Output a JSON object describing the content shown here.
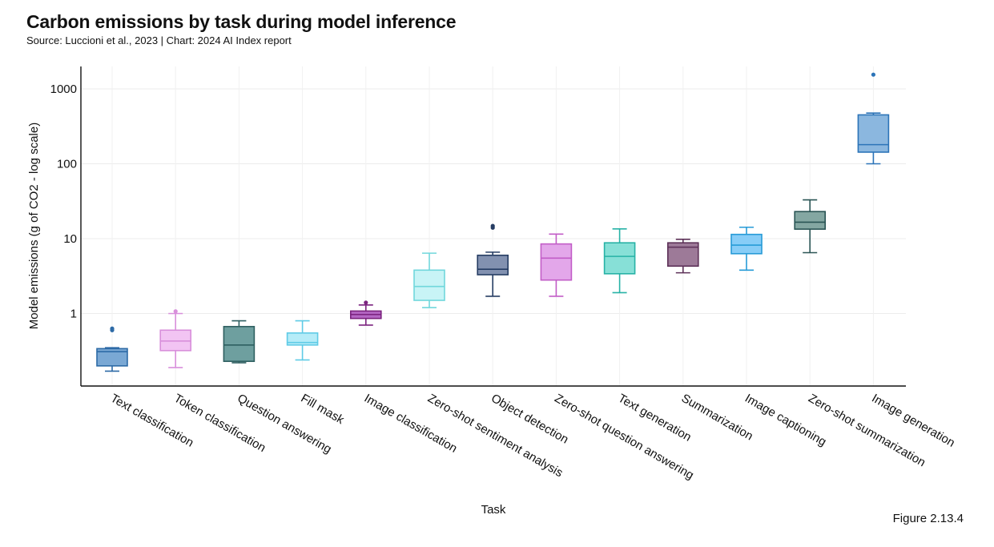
{
  "header": {
    "title": "Carbon emissions by task during model inference",
    "subtitle": "Source: Luccioni et al., 2023 | Chart: 2024 AI Index report"
  },
  "footer": {
    "figure_label": "Figure 2.13.4"
  },
  "chart_data": {
    "type": "box",
    "title": "Carbon emissions by task during model inference",
    "xlabel": "Task",
    "ylabel": "Model emissions (g of CO2 - log scale)",
    "y_scale": "log",
    "ylim": [
      0.12,
      2200
    ],
    "y_ticks": [
      1,
      10,
      100,
      1000
    ],
    "y_tick_labels": [
      "1",
      "10",
      "100",
      "1000"
    ],
    "grid": true,
    "categories": [
      "Text classification",
      "Token classification",
      "Question answering",
      "Fill mask",
      "Image classification",
      "Zero-shot sentiment analysis",
      "Object detection",
      "Zero-shot question answering",
      "Text generation",
      "Summarization",
      "Image captioning",
      "Zero-shot summarization",
      "Image generation"
    ],
    "boxes": [
      {
        "min": 0.17,
        "q1": 0.2,
        "median": 0.31,
        "q3": 0.34,
        "max": 0.35,
        "outliers": [
          0.6,
          0.63
        ],
        "fill": "#7aa8d4",
        "stroke": "#2d6aa6"
      },
      {
        "min": 0.19,
        "q1": 0.32,
        "median": 0.43,
        "q3": 0.6,
        "max": 1.0,
        "outliers": [
          1.07
        ],
        "fill": "#f2c4f3",
        "stroke": "#d88fdb"
      },
      {
        "min": 0.22,
        "q1": 0.23,
        "median": 0.38,
        "q3": 0.67,
        "max": 0.8,
        "outliers": [],
        "fill": "#6e9f9f",
        "stroke": "#2e5f60"
      },
      {
        "min": 0.24,
        "q1": 0.38,
        "median": 0.41,
        "q3": 0.55,
        "max": 0.8,
        "outliers": [],
        "fill": "#b5ecf8",
        "stroke": "#5fcbe6"
      },
      {
        "min": 0.7,
        "q1": 0.86,
        "median": 0.97,
        "q3": 1.08,
        "max": 1.3,
        "outliers": [
          1.4
        ],
        "fill": "#b567c4",
        "stroke": "#7b237f"
      },
      {
        "min": 1.2,
        "q1": 1.5,
        "median": 2.3,
        "q3": 3.8,
        "max": 6.4,
        "outliers": [],
        "fill": "#c8f4f6",
        "stroke": "#71d7dc"
      },
      {
        "min": 1.7,
        "q1": 3.3,
        "median": 3.9,
        "q3": 6.0,
        "max": 6.6,
        "outliers": [
          14.0,
          14.8
        ],
        "fill": "#8291b0",
        "stroke": "#263d63"
      },
      {
        "min": 1.7,
        "q1": 2.8,
        "median": 5.5,
        "q3": 8.5,
        "max": 11.5,
        "outliers": [],
        "fill": "#e3a7ea",
        "stroke": "#c25dc7"
      },
      {
        "min": 1.9,
        "q1": 3.4,
        "median": 5.8,
        "q3": 8.8,
        "max": 13.5,
        "outliers": [],
        "fill": "#87e0d7",
        "stroke": "#27b2a6"
      },
      {
        "min": 3.5,
        "q1": 4.3,
        "median": 7.7,
        "q3": 8.8,
        "max": 9.8,
        "outliers": [],
        "fill": "#9d7a98",
        "stroke": "#5d3158"
      },
      {
        "min": 3.8,
        "q1": 6.3,
        "median": 8.2,
        "q3": 11.4,
        "max": 14.2,
        "outliers": [],
        "fill": "#87cdf7",
        "stroke": "#279bd7"
      },
      {
        "min": 6.5,
        "q1": 13.4,
        "median": 16.6,
        "q3": 23.0,
        "max": 33.0,
        "outliers": [],
        "fill": "#84a7a2",
        "stroke": "#2a5555"
      },
      {
        "min": 100,
        "q1": 143,
        "median": 180,
        "q3": 450,
        "max": 475,
        "outliers": [
          1550
        ],
        "fill": "#8bb7df",
        "stroke": "#2c74b8"
      }
    ]
  }
}
